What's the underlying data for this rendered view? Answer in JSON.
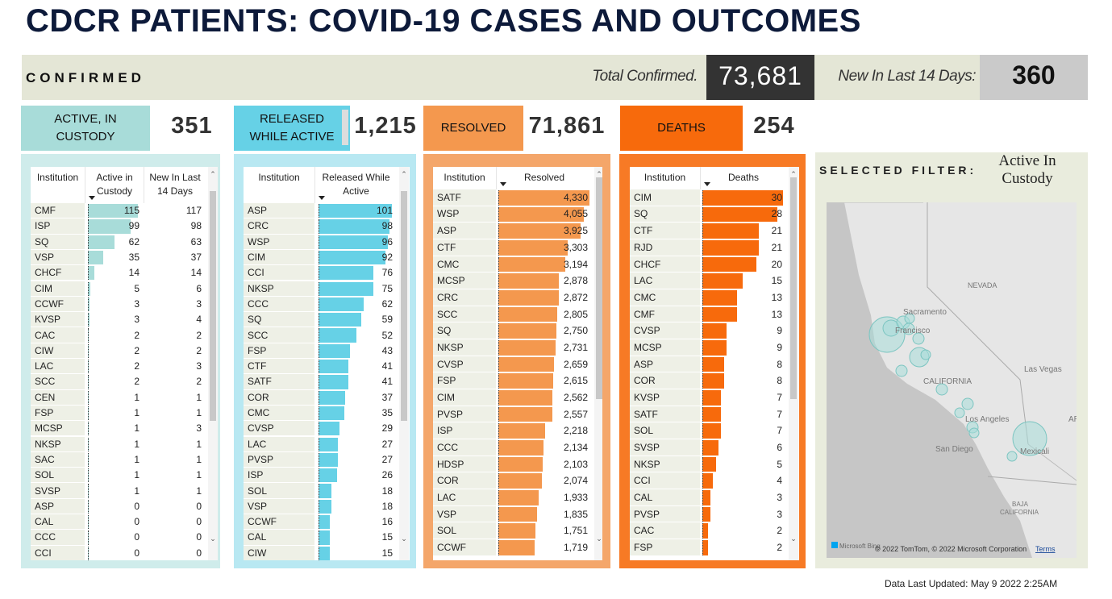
{
  "title": "CDCR PATIENTS: COVID-19 CASES AND OUTCOMES",
  "summary": {
    "label": "CONFIRMED",
    "total_label": "Total Confirmed.",
    "total": "73,681",
    "new_label": "New In Last 14 Days:",
    "new": "360"
  },
  "cards": [
    {
      "label": "ACTIVE, IN CUSTODY",
      "value": "351"
    },
    {
      "label": "RELEASED WHILE ACTIVE",
      "value": "1,215"
    },
    {
      "label": "RESOLVED",
      "value": "71,861"
    },
    {
      "label": "DEATHS",
      "value": "254"
    }
  ],
  "tables": [
    {
      "headers": [
        "Institution",
        "Active in Custody",
        "New In Last 14 Days"
      ],
      "rows": [
        [
          "CMF",
          115,
          117
        ],
        [
          "ISP",
          99,
          98
        ],
        [
          "SQ",
          62,
          63
        ],
        [
          "VSP",
          35,
          37
        ],
        [
          "CHCF",
          14,
          14
        ],
        [
          "CIM",
          5,
          6
        ],
        [
          "CCWF",
          3,
          3
        ],
        [
          "KVSP",
          3,
          4
        ],
        [
          "CAC",
          2,
          2
        ],
        [
          "CIW",
          2,
          2
        ],
        [
          "LAC",
          2,
          3
        ],
        [
          "SCC",
          2,
          2
        ],
        [
          "CEN",
          1,
          1
        ],
        [
          "FSP",
          1,
          1
        ],
        [
          "MCSP",
          1,
          3
        ],
        [
          "NKSP",
          1,
          1
        ],
        [
          "SAC",
          1,
          1
        ],
        [
          "SOL",
          1,
          1
        ],
        [
          "SVSP",
          1,
          1
        ],
        [
          "ASP",
          0,
          0
        ],
        [
          "CAL",
          0,
          0
        ],
        [
          "CCC",
          0,
          0
        ],
        [
          "CCI",
          0,
          0
        ]
      ]
    },
    {
      "headers": [
        "Institution",
        "Released While Active"
      ],
      "rows": [
        [
          "ASP",
          101
        ],
        [
          "CRC",
          98
        ],
        [
          "WSP",
          96
        ],
        [
          "CIM",
          92
        ],
        [
          "CCI",
          76
        ],
        [
          "NKSP",
          75
        ],
        [
          "CCC",
          62
        ],
        [
          "SQ",
          59
        ],
        [
          "SCC",
          52
        ],
        [
          "FSP",
          43
        ],
        [
          "CTF",
          41
        ],
        [
          "SATF",
          41
        ],
        [
          "COR",
          37
        ],
        [
          "CMC",
          35
        ],
        [
          "CVSP",
          29
        ],
        [
          "LAC",
          27
        ],
        [
          "PVSP",
          27
        ],
        [
          "ISP",
          26
        ],
        [
          "SOL",
          18
        ],
        [
          "VSP",
          18
        ],
        [
          "CCWF",
          16
        ],
        [
          "CAL",
          15
        ],
        [
          "CIW",
          15
        ]
      ]
    },
    {
      "headers": [
        "Institution",
        "Resolved"
      ],
      "rows": [
        [
          "SATF",
          {
            "value": 4330,
            "label": "4,330"
          }
        ],
        [
          "WSP",
          {
            "value": 4055,
            "label": "4,055"
          }
        ],
        [
          "ASP",
          {
            "value": 3925,
            "label": "3,925"
          }
        ],
        [
          "CTF",
          {
            "value": 3303,
            "label": "3,303"
          }
        ],
        [
          "CMC",
          {
            "value": 3194,
            "label": "3,194"
          }
        ],
        [
          "MCSP",
          {
            "value": 2878,
            "label": "2,878"
          }
        ],
        [
          "CRC",
          {
            "value": 2872,
            "label": "2,872"
          }
        ],
        [
          "SCC",
          {
            "value": 2805,
            "label": "2,805"
          }
        ],
        [
          "SQ",
          {
            "value": 2750,
            "label": "2,750"
          }
        ],
        [
          "NKSP",
          {
            "value": 2731,
            "label": "2,731"
          }
        ],
        [
          "CVSP",
          {
            "value": 2659,
            "label": "2,659"
          }
        ],
        [
          "FSP",
          {
            "value": 2615,
            "label": "2,615"
          }
        ],
        [
          "CIM",
          {
            "value": 2562,
            "label": "2,562"
          }
        ],
        [
          "PVSP",
          {
            "value": 2557,
            "label": "2,557"
          }
        ],
        [
          "ISP",
          {
            "value": 2218,
            "label": "2,218"
          }
        ],
        [
          "CCC",
          {
            "value": 2134,
            "label": "2,134"
          }
        ],
        [
          "HDSP",
          {
            "value": 2103,
            "label": "2,103"
          }
        ],
        [
          "COR",
          {
            "value": 2074,
            "label": "2,074"
          }
        ],
        [
          "LAC",
          {
            "value": 1933,
            "label": "1,933"
          }
        ],
        [
          "VSP",
          {
            "value": 1835,
            "label": "1,835"
          }
        ],
        [
          "SOL",
          {
            "value": 1751,
            "label": "1,751"
          }
        ],
        [
          "CCWF",
          {
            "value": 1719,
            "label": "1,719"
          }
        ]
      ]
    },
    {
      "headers": [
        "Institution",
        "Deaths"
      ],
      "rows": [
        [
          "CIM",
          30
        ],
        [
          "SQ",
          28
        ],
        [
          "CTF",
          21
        ],
        [
          "RJD",
          21
        ],
        [
          "CHCF",
          20
        ],
        [
          "LAC",
          15
        ],
        [
          "CMC",
          13
        ],
        [
          "CMF",
          13
        ],
        [
          "CVSP",
          9
        ],
        [
          "MCSP",
          9
        ],
        [
          "ASP",
          8
        ],
        [
          "COR",
          8
        ],
        [
          "KVSP",
          7
        ],
        [
          "SATF",
          7
        ],
        [
          "SOL",
          7
        ],
        [
          "SVSP",
          6
        ],
        [
          "NKSP",
          5
        ],
        [
          "CCI",
          4
        ],
        [
          "CAL",
          3
        ],
        [
          "PVSP",
          3
        ],
        [
          "CAC",
          2
        ],
        [
          "FSP",
          2
        ]
      ]
    }
  ],
  "filter": {
    "label": "SELECTED FILTER:",
    "value": "Active In Custody"
  },
  "map": {
    "labels": [
      "NEVADA",
      "Sacramento",
      "Francisco",
      "CALIFORNIA",
      "Las Vegas",
      "Los Angeles",
      "San Diego",
      "Mexicali",
      "BAJA",
      "CALIFORNIA",
      "AR"
    ],
    "logo": "Microsoft Bing",
    "attribution": "© 2022 TomTom, © 2022 Microsoft Corporation",
    "terms": "Terms"
  },
  "footer": "Data Last Updated: May 9 2022 2:25AM"
}
